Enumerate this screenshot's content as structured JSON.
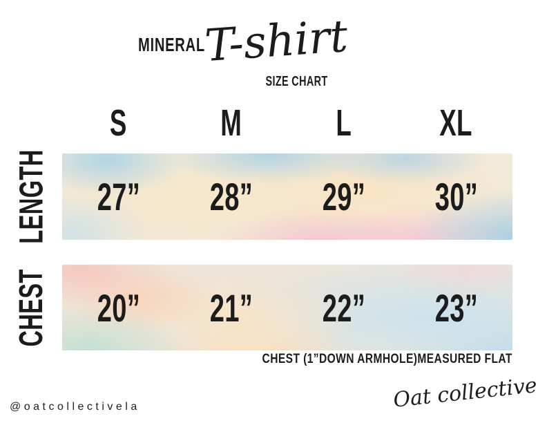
{
  "title": {
    "brand_line": "MINERAL",
    "script_word": "T-shirt",
    "subtitle": "SIZE CHART"
  },
  "size_chart": {
    "sizes": [
      "S",
      "M",
      "L",
      "XL"
    ],
    "rows": [
      {
        "label": "LENGTH",
        "values": [
          "27”",
          "28”",
          "29”",
          "30”"
        ]
      },
      {
        "label": "CHEST",
        "values": [
          "20”",
          "21”",
          "22”",
          "23”"
        ]
      }
    ],
    "note": "CHEST (1”DOWN ARMHOLE)MEASURED FLAT"
  },
  "footer": {
    "handle": "@oatcollectivela",
    "signature": "Oat collective"
  },
  "colors": {
    "ink": "#1c1c1c",
    "background": "#ffffff",
    "watercolor": {
      "blue": "#bcd9e9",
      "cream": "#f7e7c9",
      "peach": "#f8d4ba",
      "pink": "#f5c4d0",
      "mint": "#c8e3d6",
      "blush": "#f6cdc3"
    }
  }
}
